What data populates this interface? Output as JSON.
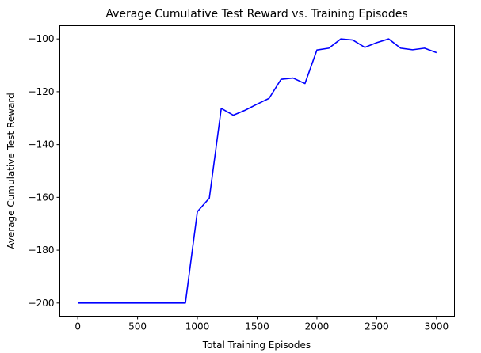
{
  "chart_data": {
    "type": "line",
    "title": "Average Cumulative Test Reward vs. Training Episodes",
    "xlabel": "Total Training Episodes",
    "ylabel": "Average Cumulative Test Reward",
    "xlim": [
      -150,
      3150
    ],
    "ylim": [
      -205,
      -95
    ],
    "xticks": [
      0,
      500,
      1000,
      1500,
      2000,
      2500,
      3000
    ],
    "yticks": [
      -200,
      -180,
      -160,
      -140,
      -120,
      -100
    ],
    "xtick_labels": [
      "0",
      "500",
      "1000",
      "1500",
      "2000",
      "2500",
      "3000"
    ],
    "ytick_labels": [
      "−200",
      "−180",
      "−160",
      "−140",
      "−120",
      "−100"
    ],
    "grid": false,
    "series": [
      {
        "color": "#0000ff",
        "x": [
          0,
          100,
          200,
          300,
          400,
          500,
          600,
          700,
          800,
          900,
          1000,
          1100,
          1200,
          1300,
          1400,
          1500,
          1600,
          1700,
          1800,
          1900,
          2000,
          2100,
          2200,
          2300,
          2400,
          2500,
          2600,
          2700,
          2800,
          2900,
          3000
        ],
        "y": [
          -200,
          -200,
          -200,
          -200,
          -200,
          -200,
          -200,
          -200,
          -200,
          -200,
          -165.4,
          -160.3,
          -126.3,
          -128.9,
          -127,
          -124.7,
          -122.5,
          -115.3,
          -114.8,
          -116.9,
          -104.2,
          -103.5,
          -100,
          -100.4,
          -103.2,
          -101.4,
          -100,
          -103.5,
          -104.1,
          -103.5,
          -105.2
        ]
      }
    ]
  }
}
